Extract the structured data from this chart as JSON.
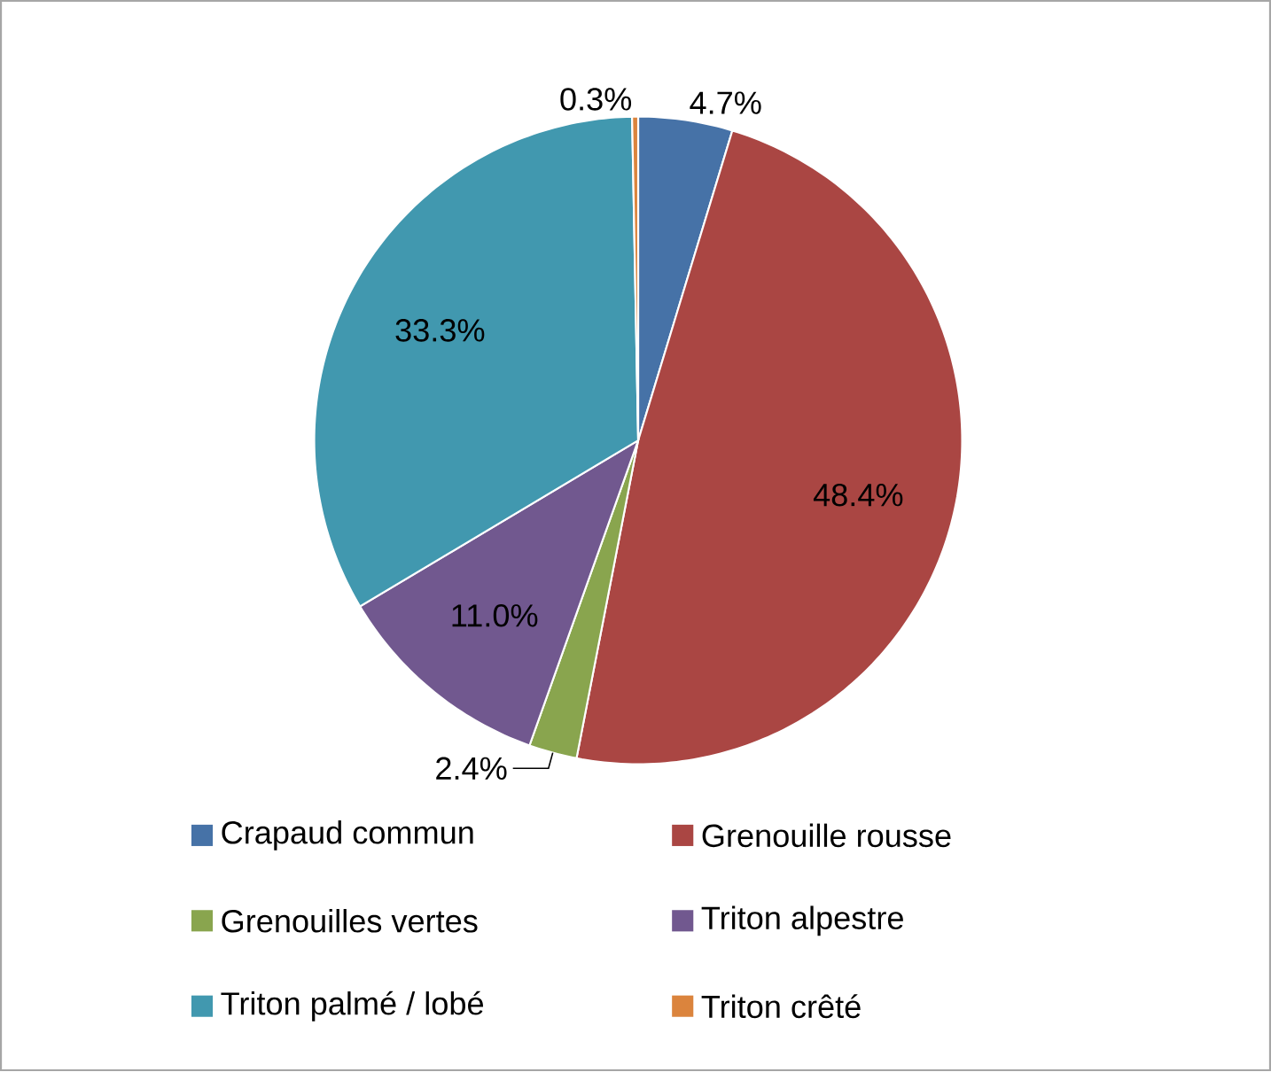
{
  "chart_data": {
    "type": "pie",
    "categories": [
      "Crapaud commun",
      "Grenouille rousse",
      "Grenouilles vertes",
      "Triton alpestre",
      "Triton palmé / lobé",
      "Triton crêté"
    ],
    "values": [
      4.7,
      48.4,
      2.4,
      11.0,
      33.3,
      0.3
    ],
    "value_labels": [
      "4.7%",
      "48.4%",
      "2.4%",
      "11.0%",
      "33.3%",
      "0.3%"
    ],
    "colors": [
      "#4672a7",
      "#aa4643",
      "#89a54e",
      "#71588f",
      "#4198af",
      "#db843d"
    ],
    "legend": "bottom"
  }
}
